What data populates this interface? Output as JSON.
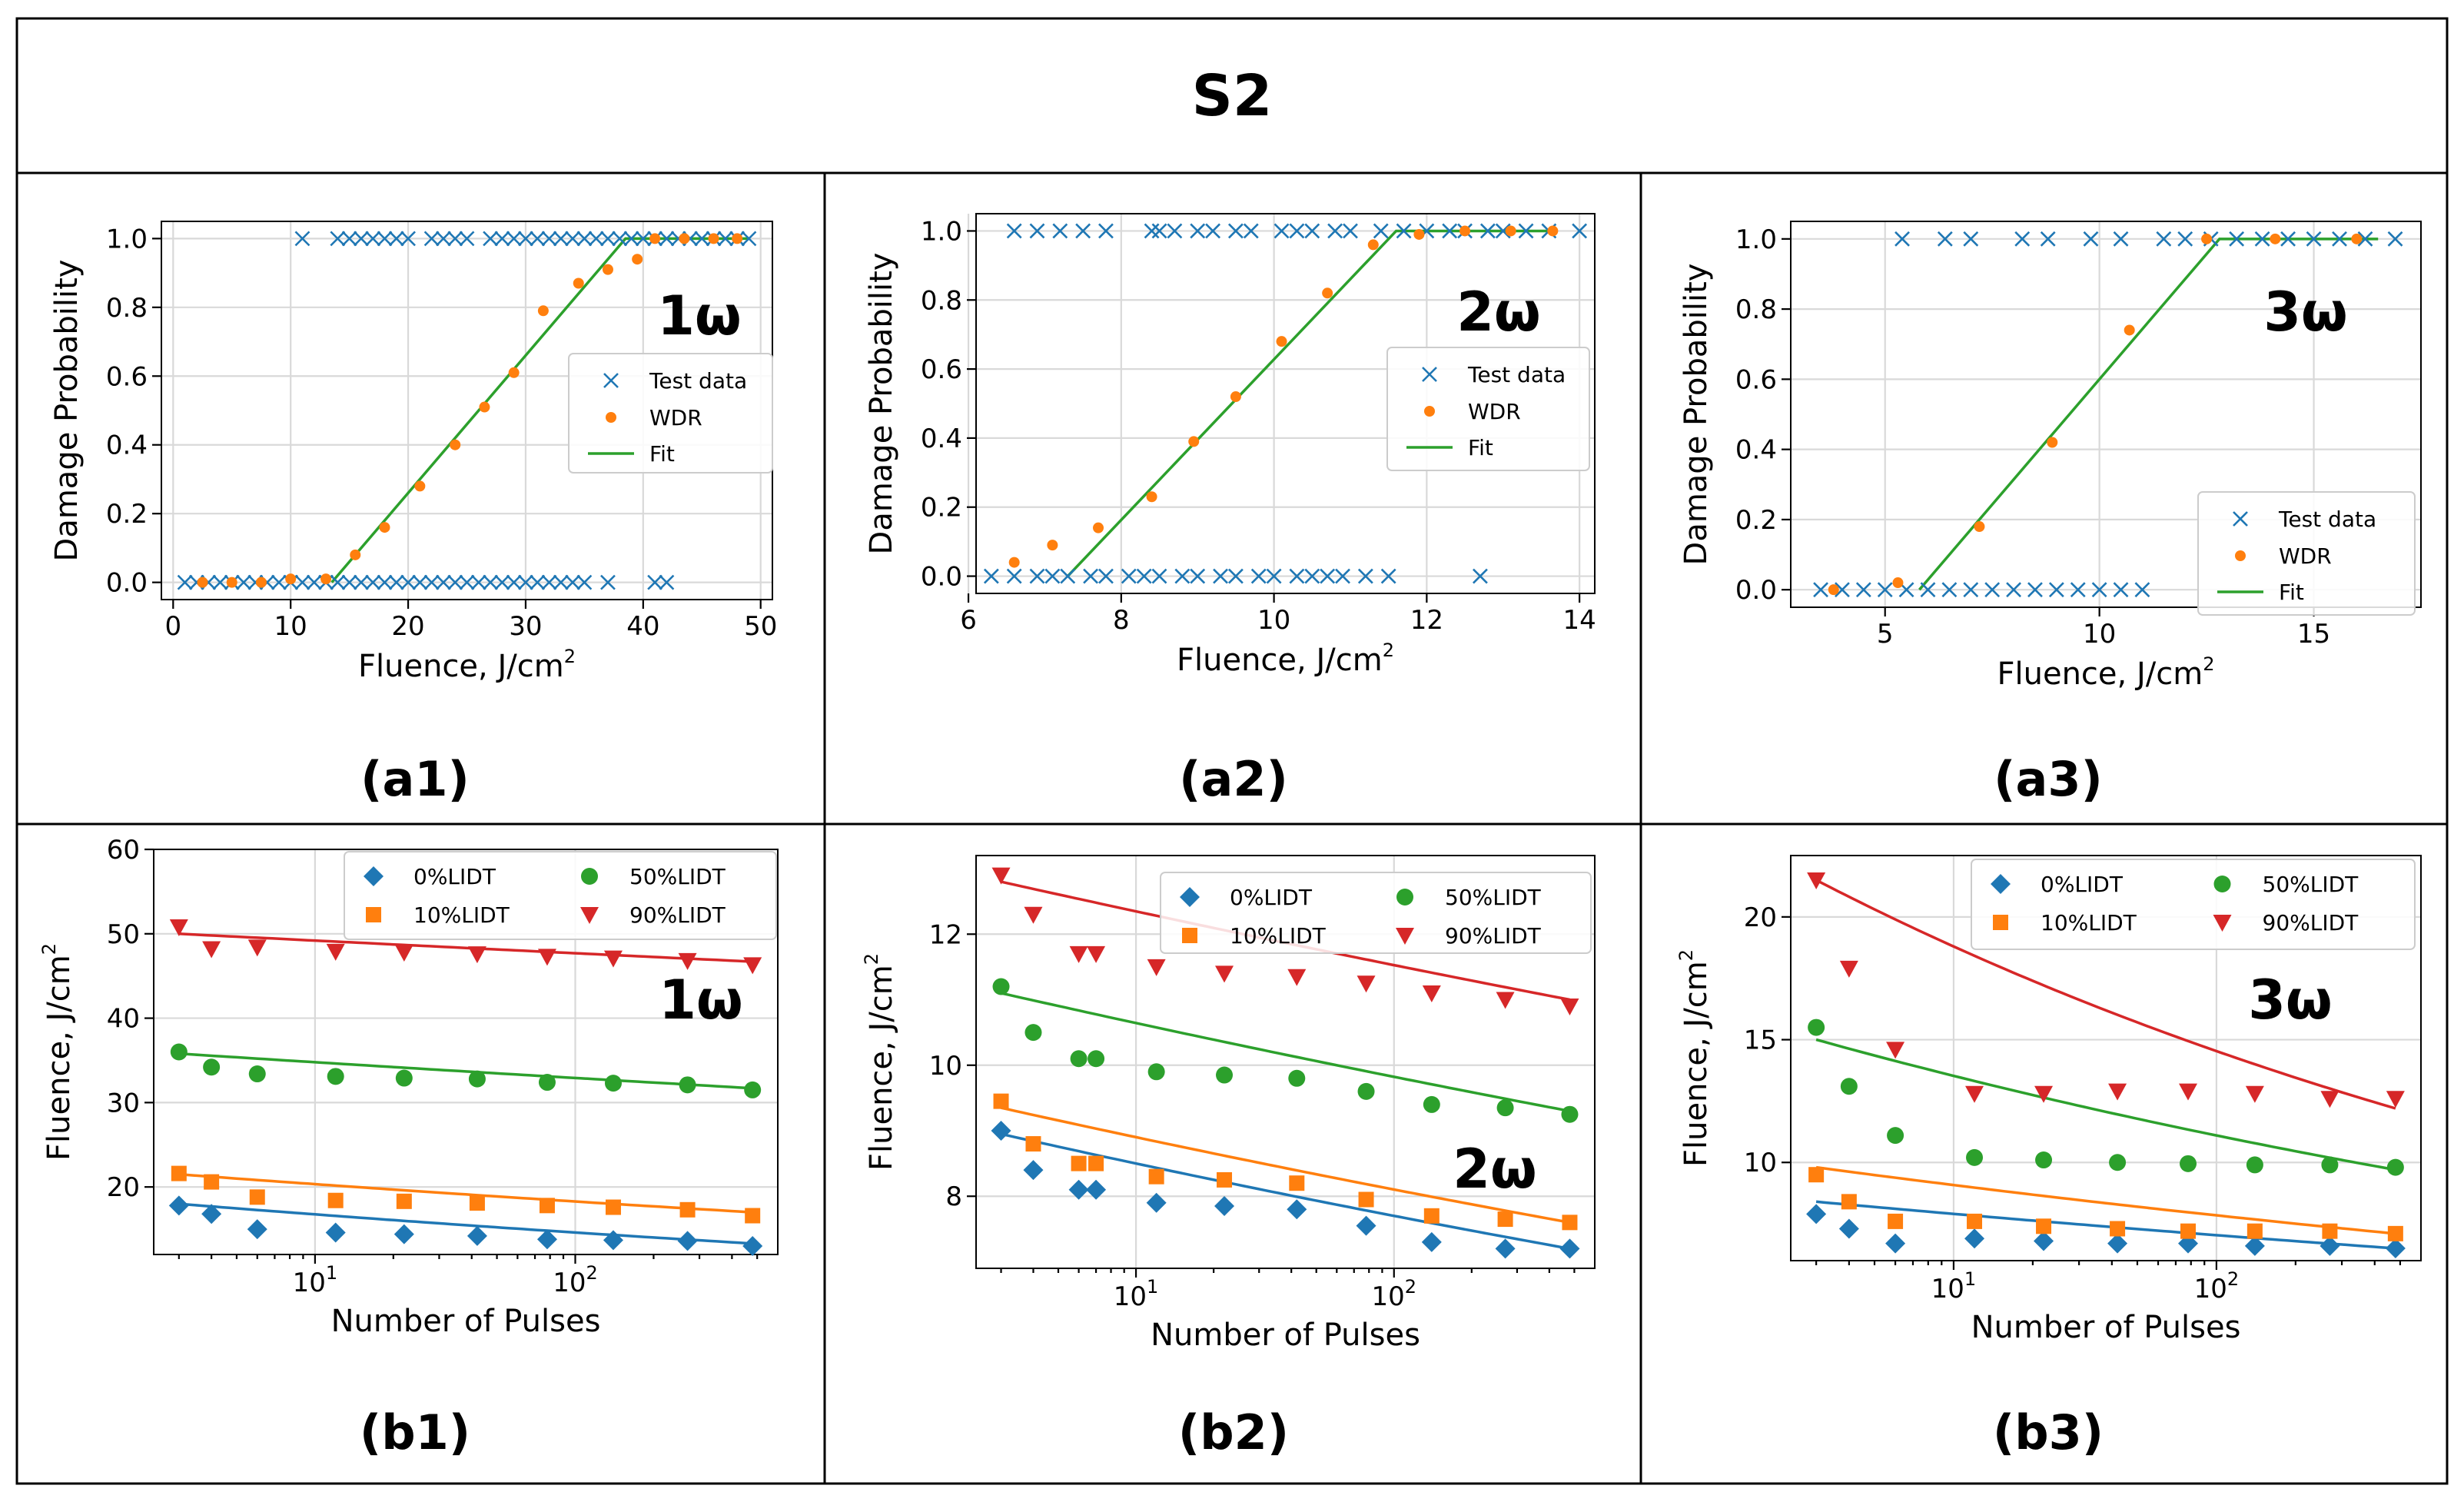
{
  "figure_title": "S2",
  "colors": {
    "test": "#1f77b4",
    "wdr": "#ff7f0e",
    "fit": "#2ca02c",
    "p0": "#1f77b4",
    "p10": "#ff7f0e",
    "p50": "#2ca02c",
    "p90": "#d62728"
  },
  "chart_data": [
    {
      "id": "a1",
      "type": "scatter",
      "caption": "(a1)",
      "annotation": "1ω",
      "xlabel": "Fluence, J/cm",
      "xlabel_sup": "2",
      "ylabel": "Damage Probability",
      "xlim": [
        -1,
        51
      ],
      "ylim": [
        -0.05,
        1.05
      ],
      "xticks": [
        0,
        10,
        20,
        30,
        40,
        50
      ],
      "xtick_labels": [
        "0",
        "10",
        "20",
        "30",
        "40",
        "50"
      ],
      "yticks": [
        0,
        0.2,
        0.4,
        0.6,
        0.8,
        1.0
      ],
      "ytick_labels": [
        "0.0",
        "0.2",
        "0.4",
        "0.6",
        "0.8",
        "1.0"
      ],
      "legend": {
        "position": "center-right",
        "entries": [
          "Test data",
          "WDR",
          "Fit"
        ]
      },
      "test_data_x_y1": [
        11,
        14,
        15,
        16,
        17,
        18,
        19,
        20,
        22,
        23,
        24,
        25,
        27,
        28,
        29,
        30,
        31,
        32,
        33,
        34,
        35,
        36,
        37,
        38,
        39,
        40,
        41,
        42,
        43,
        44,
        45,
        46,
        47,
        48,
        49
      ],
      "test_data_x_y0": [
        1,
        2,
        3,
        4,
        5,
        6,
        7,
        8,
        9,
        10,
        11,
        12,
        13,
        14,
        15,
        16,
        17,
        18,
        19,
        20,
        21,
        22,
        23,
        24,
        25,
        26,
        27,
        28,
        29,
        30,
        31,
        32,
        33,
        34,
        35,
        37,
        41,
        42
      ],
      "wdr": [
        [
          2.5,
          0
        ],
        [
          5,
          0
        ],
        [
          7.5,
          0
        ],
        [
          10,
          0.01
        ],
        [
          13,
          0.01
        ],
        [
          15.5,
          0.08
        ],
        [
          18,
          0.16
        ],
        [
          21,
          0.28
        ],
        [
          24,
          0.4
        ],
        [
          26.5,
          0.51
        ],
        [
          29,
          0.61
        ],
        [
          31.5,
          0.79
        ],
        [
          34.5,
          0.87
        ],
        [
          37,
          0.91
        ],
        [
          39.5,
          0.94
        ],
        [
          41,
          1.0
        ],
        [
          43.5,
          1.0
        ],
        [
          46,
          1.0
        ],
        [
          48,
          1.0
        ]
      ],
      "fit": [
        [
          13.5,
          0
        ],
        [
          38.5,
          1.0
        ],
        [
          49,
          1.0
        ]
      ]
    },
    {
      "id": "a2",
      "type": "scatter",
      "caption": "(a2)",
      "annotation": "2ω",
      "xlabel": "Fluence, J/cm",
      "xlabel_sup": "2",
      "ylabel": "Damage Probability",
      "xlim": [
        6.1,
        14.2
      ],
      "ylim": [
        -0.05,
        1.05
      ],
      "xticks": [
        6,
        8,
        10,
        12,
        14
      ],
      "xtick_labels": [
        "6",
        "8",
        "10",
        "12",
        "14"
      ],
      "yticks": [
        0,
        0.2,
        0.4,
        0.6,
        0.8,
        1.0
      ],
      "ytick_labels": [
        "0.0",
        "0.2",
        "0.4",
        "0.6",
        "0.8",
        "1.0"
      ],
      "legend": {
        "position": "center-right",
        "entries": [
          "Test data",
          "WDR",
          "Fit"
        ]
      },
      "test_data_x_y1": [
        6.6,
        6.9,
        7.2,
        7.5,
        7.8,
        8.4,
        8.5,
        8.7,
        9.0,
        9.2,
        9.5,
        9.7,
        10.1,
        10.3,
        10.5,
        10.8,
        11.0,
        11.4,
        11.7,
        12.0,
        12.3,
        12.5,
        12.8,
        13.0,
        13.3,
        13.6,
        14.0
      ],
      "test_data_x_y0": [
        6.3,
        6.6,
        6.9,
        7.1,
        7.3,
        7.6,
        7.8,
        8.1,
        8.3,
        8.5,
        8.8,
        9.0,
        9.3,
        9.5,
        9.8,
        10.0,
        10.3,
        10.5,
        10.7,
        10.9,
        11.2,
        11.5,
        12.7
      ],
      "wdr": [
        [
          6.6,
          0.04
        ],
        [
          7.1,
          0.09
        ],
        [
          7.7,
          0.14
        ],
        [
          8.4,
          0.23
        ],
        [
          8.95,
          0.39
        ],
        [
          9.5,
          0.52
        ],
        [
          10.1,
          0.68
        ],
        [
          10.7,
          0.82
        ],
        [
          11.3,
          0.96
        ],
        [
          11.9,
          0.99
        ],
        [
          12.5,
          1.0
        ],
        [
          13.1,
          1.0
        ],
        [
          13.65,
          1.0
        ]
      ],
      "fit": [
        [
          7.3,
          0
        ],
        [
          11.6,
          1.0
        ],
        [
          13.7,
          1.0
        ]
      ]
    },
    {
      "id": "a3",
      "type": "scatter",
      "caption": "(a3)",
      "annotation": "3ω",
      "xlabel": "Fluence, J/cm",
      "xlabel_sup": "2",
      "ylabel": "Damage Probability",
      "xlim": [
        2.8,
        17.5
      ],
      "ylim": [
        -0.05,
        1.05
      ],
      "xticks": [
        5,
        10,
        15
      ],
      "xtick_labels": [
        "5",
        "10",
        "15"
      ],
      "yticks": [
        0,
        0.2,
        0.4,
        0.6,
        0.8,
        1.0
      ],
      "ytick_labels": [
        "0.0",
        "0.2",
        "0.4",
        "0.6",
        "0.8",
        "1.0"
      ],
      "legend": {
        "position": "lower-right",
        "entries": [
          "Test data",
          "WDR",
          "Fit"
        ]
      },
      "test_data_x_y1": [
        5.4,
        6.4,
        7.0,
        8.2,
        8.8,
        9.8,
        10.5,
        11.5,
        12.0,
        12.6,
        13.2,
        13.8,
        14.4,
        15.0,
        15.6,
        16.2,
        16.9
      ],
      "test_data_x_y0": [
        3.5,
        4.0,
        4.5,
        5.0,
        5.5,
        6.0,
        6.5,
        7.0,
        7.5,
        8.0,
        8.5,
        9.0,
        9.5,
        10.0,
        10.5,
        11.0
      ],
      "wdr": [
        [
          3.8,
          0
        ],
        [
          5.3,
          0.02
        ],
        [
          7.2,
          0.18
        ],
        [
          8.9,
          0.42
        ],
        [
          10.7,
          0.74
        ],
        [
          12.5,
          1.0
        ],
        [
          14.1,
          1.0
        ],
        [
          16.0,
          1.0
        ]
      ],
      "fit": [
        [
          5.8,
          0
        ],
        [
          12.8,
          1.0
        ],
        [
          16.5,
          1.0
        ]
      ]
    },
    {
      "id": "b1",
      "type": "scatter",
      "caption": "(b1)",
      "annotation": "1ω",
      "xlabel": "Number of Pulses",
      "ylabel": "Fluence, J/cm",
      "ylabel_sup": "2",
      "xscale": "log",
      "xlim": [
        2.4,
        600
      ],
      "ylim": [
        12,
        60
      ],
      "yticks": [
        20,
        30,
        40,
        50,
        60
      ],
      "ytick_labels": [
        "20",
        "30",
        "40",
        "50",
        "60"
      ],
      "xtick_labels": [
        "10",
        "10"
      ],
      "xtick_sups": [
        "1",
        "2"
      ],
      "legend": {
        "position": "top-right",
        "entries": [
          "0%LIDT",
          "10%LIDT",
          "50%LIDT",
          "90%LIDT"
        ]
      },
      "x": [
        3,
        4,
        6,
        12,
        22,
        42,
        78,
        140,
        270,
        480
      ],
      "series": [
        {
          "name": "0%LIDT",
          "marker": "diamond",
          "values": [
            17.8,
            16.8,
            15.0,
            14.6,
            14.4,
            14.2,
            13.8,
            13.7,
            13.6,
            13.0
          ],
          "fit": [
            18.0,
            13.3
          ]
        },
        {
          "name": "10%LIDT",
          "marker": "square",
          "values": [
            21.6,
            20.6,
            18.8,
            18.4,
            18.3,
            18.1,
            17.8,
            17.6,
            17.3,
            16.6
          ],
          "fit": [
            21.5,
            17.0
          ]
        },
        {
          "name": "50%LIDT",
          "marker": "circle",
          "values": [
            36.0,
            34.2,
            33.4,
            33.1,
            32.9,
            32.8,
            32.4,
            32.3,
            32.1,
            31.5
          ],
          "fit": [
            35.8,
            31.7
          ]
        },
        {
          "name": "90%LIDT",
          "marker": "triangle",
          "values": [
            50.8,
            48.2,
            48.4,
            47.9,
            47.8,
            47.6,
            47.3,
            47.1,
            46.8,
            46.3
          ],
          "fit": [
            50.0,
            46.7
          ]
        }
      ]
    },
    {
      "id": "b2",
      "type": "scatter",
      "caption": "(b2)",
      "annotation": "2ω",
      "xlabel": "Number of Pulses",
      "ylabel": "Fluence, J/cm",
      "ylabel_sup": "2",
      "xscale": "log",
      "xlim": [
        2.4,
        600
      ],
      "ylim": [
        6.9,
        13.2
      ],
      "yticks": [
        8,
        10,
        12
      ],
      "ytick_labels": [
        "8",
        "10",
        "12"
      ],
      "xtick_labels": [
        "10",
        "10"
      ],
      "xtick_sups": [
        "1",
        "2"
      ],
      "legend": {
        "position": "top-right",
        "entries": [
          "0%LIDT",
          "10%LIDT",
          "50%LIDT",
          "90%LIDT"
        ]
      },
      "x": [
        3,
        4,
        6,
        7,
        12,
        22,
        42,
        78,
        140,
        270,
        480
      ],
      "series": [
        {
          "name": "0%LIDT",
          "marker": "diamond",
          "values": [
            9.0,
            8.4,
            8.1,
            8.1,
            7.9,
            7.85,
            7.8,
            7.55,
            7.3,
            7.2,
            7.2
          ],
          "fit": [
            8.95,
            7.2
          ]
        },
        {
          "name": "10%LIDT",
          "marker": "square",
          "values": [
            9.45,
            8.8,
            8.5,
            8.5,
            8.3,
            8.25,
            8.2,
            7.95,
            7.7,
            7.65,
            7.6
          ],
          "fit": [
            9.35,
            7.6
          ]
        },
        {
          "name": "50%LIDT",
          "marker": "circle",
          "values": [
            11.2,
            10.5,
            10.1,
            10.1,
            9.9,
            9.85,
            9.8,
            9.6,
            9.4,
            9.35,
            9.25
          ],
          "fit": [
            11.1,
            9.3
          ]
        },
        {
          "name": "90%LIDT",
          "marker": "triangle",
          "values": [
            12.9,
            12.3,
            11.7,
            11.7,
            11.5,
            11.4,
            11.35,
            11.25,
            11.1,
            11.0,
            10.9
          ],
          "fit": [
            12.8,
            11.0
          ]
        }
      ]
    },
    {
      "id": "b3",
      "type": "scatter",
      "caption": "(b3)",
      "annotation": "3ω",
      "xlabel": "Number of Pulses",
      "ylabel": "Fluence, J/cm",
      "ylabel_sup": "2",
      "xscale": "log",
      "xlim": [
        2.4,
        600
      ],
      "ylim": [
        6,
        22.5
      ],
      "yticks": [
        10,
        15,
        20
      ],
      "ytick_labels": [
        "10",
        "15",
        "20"
      ],
      "xtick_labels": [
        "10",
        "10"
      ],
      "xtick_sups": [
        "1",
        "2"
      ],
      "legend": {
        "position": "top-right",
        "entries": [
          "0%LIDT",
          "10%LIDT",
          "50%LIDT",
          "90%LIDT"
        ]
      },
      "x": [
        3,
        4,
        6,
        12,
        22,
        42,
        78,
        140,
        270,
        480
      ],
      "series": [
        {
          "name": "0%LIDT",
          "marker": "diamond",
          "values": [
            7.9,
            7.3,
            6.7,
            6.9,
            6.8,
            6.7,
            6.7,
            6.6,
            6.6,
            6.5
          ],
          "fit": [
            8.4,
            6.5
          ]
        },
        {
          "name": "10%LIDT",
          "marker": "square",
          "values": [
            9.5,
            8.4,
            7.6,
            7.6,
            7.4,
            7.3,
            7.2,
            7.2,
            7.2,
            7.1
          ],
          "fit": [
            9.8,
            7.1
          ]
        },
        {
          "name": "50%LIDT",
          "marker": "circle",
          "values": [
            15.5,
            13.1,
            11.1,
            10.2,
            10.1,
            10.0,
            9.95,
            9.9,
            9.9,
            9.8
          ],
          "fit": [
            15.0,
            9.7
          ]
        },
        {
          "name": "90%LIDT",
          "marker": "triangle",
          "values": [
            21.5,
            17.9,
            14.6,
            12.8,
            12.8,
            12.9,
            12.9,
            12.8,
            12.6,
            12.6
          ],
          "fit": [
            21.5,
            12.2
          ]
        }
      ]
    }
  ]
}
